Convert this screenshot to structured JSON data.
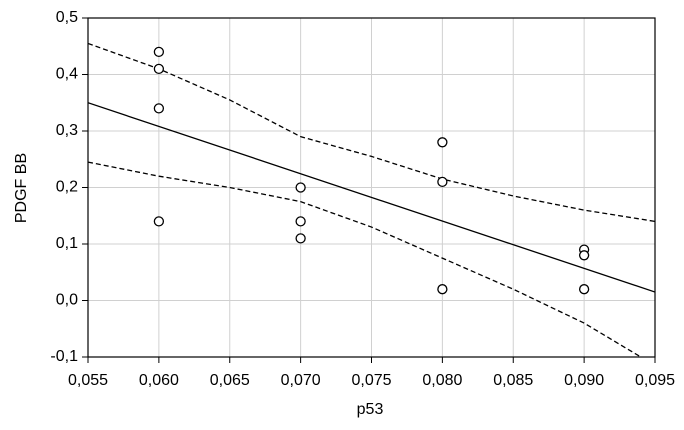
{
  "chart_data": {
    "type": "scatter",
    "x_label": "p53",
    "y_label": "PDGF BB",
    "xlim": [
      0.055,
      0.095
    ],
    "xticks": [
      {
        "value": 0.055,
        "label": "0,055"
      },
      {
        "value": 0.06,
        "label": "0,060"
      },
      {
        "value": 0.065,
        "label": "0,065"
      },
      {
        "value": 0.07,
        "label": "0,070"
      },
      {
        "value": 0.075,
        "label": "0,075"
      },
      {
        "value": 0.08,
        "label": "0,080"
      },
      {
        "value": 0.085,
        "label": "0,085"
      },
      {
        "value": 0.09,
        "label": "0,090"
      },
      {
        "value": 0.095,
        "label": "0,095"
      }
    ],
    "ylim": [
      -0.1,
      0.5
    ],
    "yticks": [
      {
        "value": -0.1,
        "label": "-0,1"
      },
      {
        "value": 0,
        "label": "0,0"
      },
      {
        "value": 0.1,
        "label": "0,1"
      },
      {
        "value": 0.2,
        "label": "0,2"
      },
      {
        "value": 0.3,
        "label": "0,3"
      },
      {
        "value": 0.4,
        "label": "0,4"
      },
      {
        "value": 0.5,
        "label": "0,5"
      }
    ],
    "grid": true,
    "color": "#000000",
    "points": {
      "x": [
        0.06,
        0.06,
        0.06,
        0.06,
        0.07,
        0.07,
        0.07,
        0.08,
        0.08,
        0.08,
        0.09,
        0.09,
        0.09
      ],
      "y": [
        0.44,
        0.41,
        0.34,
        0.14,
        0.2,
        0.14,
        0.11,
        0.28,
        0.21,
        0.02,
        0.09,
        0.08,
        0.02
      ]
    },
    "lines": [
      {
        "style": "solid",
        "x": [
          0.055,
          0.095
        ],
        "y": [
          0.35,
          0.015
        ]
      },
      {
        "style": "dashed",
        "x": [
          0.055,
          0.06,
          0.065,
          0.07,
          0.075,
          0.08,
          0.085,
          0.09,
          0.095
        ],
        "y": [
          0.455,
          0.41,
          0.355,
          0.29,
          0.255,
          0.215,
          0.185,
          0.16,
          0.14
        ]
      },
      {
        "style": "dashed",
        "x": [
          0.055,
          0.06,
          0.065,
          0.07,
          0.075,
          0.08,
          0.085,
          0.09,
          0.094
        ],
        "y": [
          0.245,
          0.22,
          0.2,
          0.175,
          0.13,
          0.075,
          0.02,
          -0.04,
          -0.1
        ]
      }
    ]
  }
}
